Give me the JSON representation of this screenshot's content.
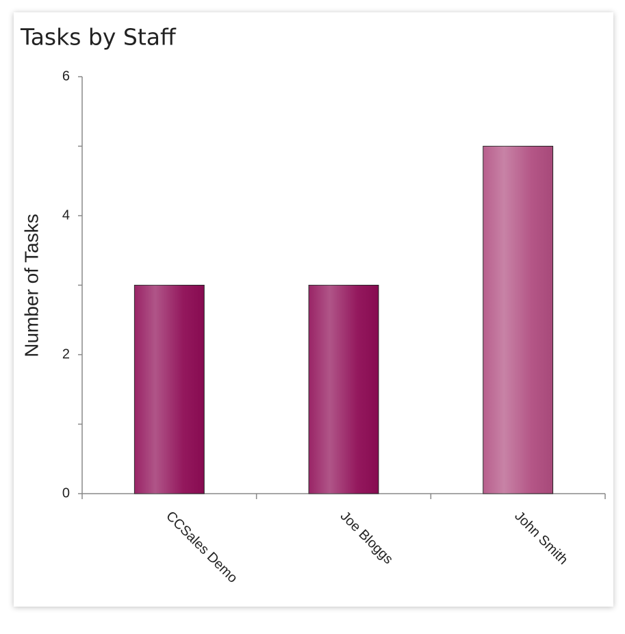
{
  "chart_data": {
    "type": "bar",
    "title": "Tasks by Staff",
    "y_label": "Number of Tasks",
    "categories": [
      "CCSales Demo",
      "Joe Bloggs",
      "John Smith"
    ],
    "values": [
      3,
      3,
      5
    ],
    "colors": [
      "#8e0c55",
      "#8e0c55",
      "#b04d80"
    ],
    "ylim": [
      0,
      6
    ],
    "yticks": [
      0,
      2,
      4,
      6
    ],
    "minor_yticks": [
      1,
      3,
      5
    ],
    "grid": false
  }
}
